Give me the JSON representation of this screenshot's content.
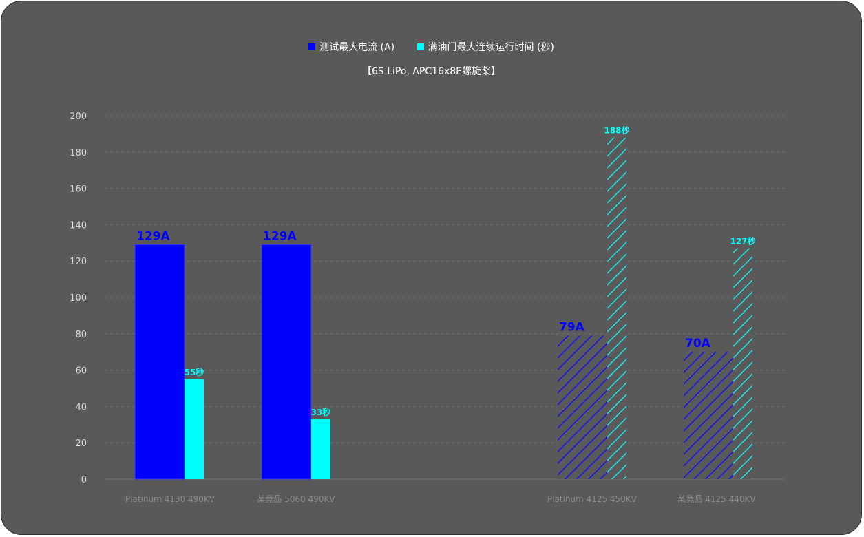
{
  "chart_data": {
    "type": "bar",
    "subtitle": "【6S LiPo, APC16x8E螺旋桨】",
    "ylim": [
      0,
      200
    ],
    "yticks": [
      0,
      20,
      40,
      60,
      80,
      100,
      120,
      140,
      160,
      180,
      200
    ],
    "grid": true,
    "legend_position": "top",
    "categories": [
      "Platinum 4130 490KV",
      "某竞品 5060 490KV",
      "Platinum 4125 450KV",
      "某竞品 4125 440KV"
    ],
    "series": [
      {
        "name": "测试最大电流 (A)",
        "color": "#0000ff",
        "values": [
          129,
          129,
          79,
          70
        ],
        "labels": [
          "129A",
          "129A",
          "79A",
          "70A"
        ],
        "hatched": [
          false,
          false,
          true,
          true
        ]
      },
      {
        "name": "满油门最大连续运行时间 (秒)",
        "color": "#00ffff",
        "values": [
          55,
          33,
          188,
          127
        ],
        "labels": [
          "55秒",
          "33秒",
          "188秒",
          "127秒"
        ],
        "hatched": [
          false,
          false,
          true,
          true
        ]
      }
    ]
  },
  "colors": {
    "background": "#595959",
    "grid": "#6e6e6e",
    "axis_text": "#d9d9d9",
    "category_text": "#8a8a8a"
  }
}
